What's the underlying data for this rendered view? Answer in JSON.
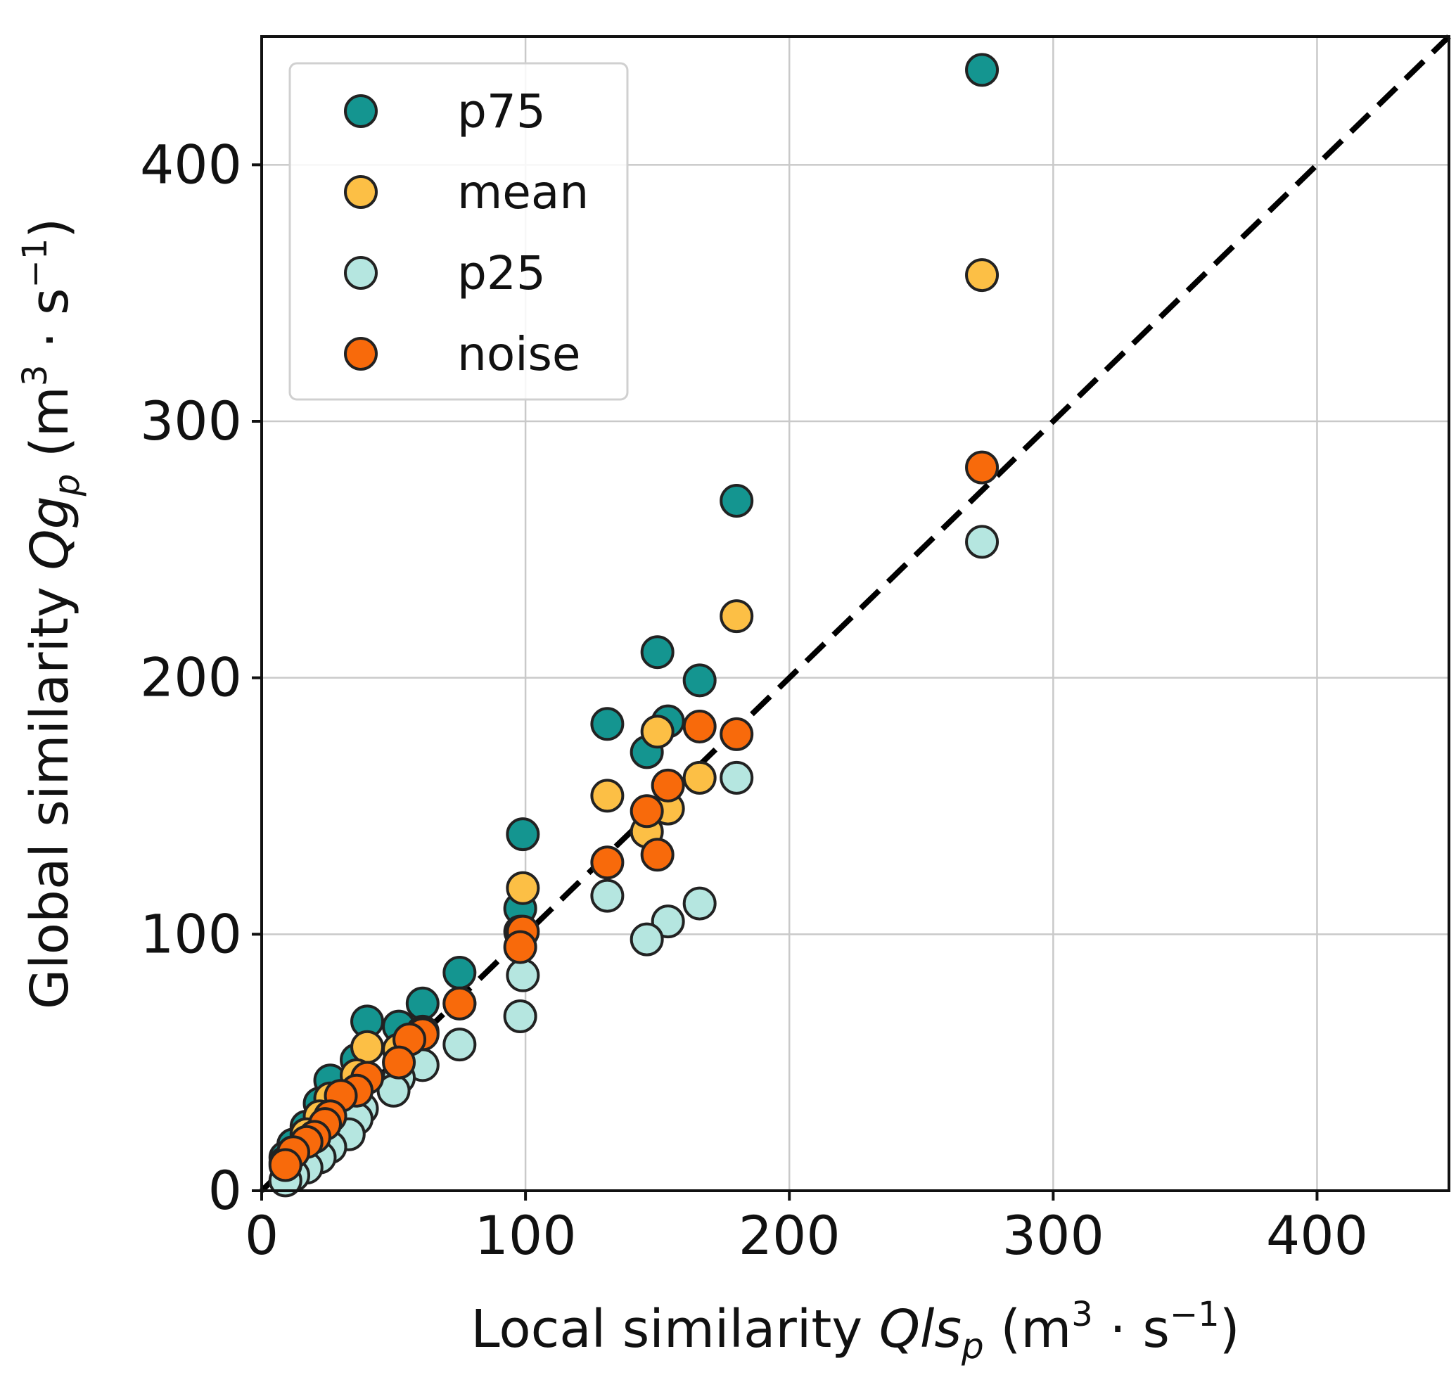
{
  "chart_data": {
    "type": "scatter",
    "title": "",
    "xlabel": {
      "text": "Local similarity ",
      "var": "Qls",
      "sub": "p",
      "unit_open": " (m",
      "unit_sup": "3",
      "unit_mid": " · s",
      "unit_sup2": "−1",
      "unit_close": ")"
    },
    "ylabel": {
      "text": "Global similarity ",
      "var": "Qg",
      "sub": "p",
      "unit_open": " (m",
      "unit_sup": "3",
      "unit_mid": " · s",
      "unit_sup2": "−1",
      "unit_close": ")"
    },
    "xlim": [
      0,
      450
    ],
    "ylim": [
      0,
      450
    ],
    "x_ticks": [
      0,
      100,
      200,
      300,
      400
    ],
    "y_ticks": [
      0,
      100,
      200,
      300,
      400
    ],
    "x_tick_labels": [
      "0",
      "100",
      "200",
      "300",
      "400"
    ],
    "y_tick_labels": [
      "0",
      "100",
      "200",
      "300",
      "400"
    ],
    "grid": true,
    "legend_position": "top-left",
    "reference_line": {
      "style": "dashed",
      "color": "#000000",
      "from": [
        0,
        0
      ],
      "to": [
        450,
        450
      ]
    },
    "series": [
      {
        "name": "p75",
        "color": "#149590",
        "points": [
          [
            273,
            437
          ],
          [
            180,
            269
          ],
          [
            150,
            210
          ],
          [
            166,
            199
          ],
          [
            154,
            183
          ],
          [
            131,
            182
          ],
          [
            146,
            171
          ],
          [
            99,
            139
          ],
          [
            98,
            110
          ],
          [
            75,
            85
          ],
          [
            40,
            66
          ],
          [
            61,
            73
          ],
          [
            52,
            64
          ],
          [
            36,
            51
          ],
          [
            26,
            43
          ],
          [
            22,
            34
          ],
          [
            17,
            25
          ],
          [
            12,
            18
          ],
          [
            9,
            13
          ]
        ]
      },
      {
        "name": "mean",
        "color": "#fcbf45",
        "points": [
          [
            273,
            357
          ],
          [
            180,
            224
          ],
          [
            150,
            179
          ],
          [
            131,
            154
          ],
          [
            166,
            161
          ],
          [
            154,
            149
          ],
          [
            146,
            140
          ],
          [
            99,
            118
          ],
          [
            98,
            101
          ],
          [
            75,
            73
          ],
          [
            40,
            56
          ],
          [
            61,
            62
          ],
          [
            52,
            55
          ],
          [
            36,
            45
          ],
          [
            26,
            36
          ],
          [
            22,
            29
          ],
          [
            17,
            22
          ],
          [
            12,
            15
          ],
          [
            9,
            11
          ]
        ]
      },
      {
        "name": "p25",
        "color": "#b5e6e0",
        "points": [
          [
            273,
            253
          ],
          [
            180,
            161
          ],
          [
            166,
            112
          ],
          [
            154,
            105
          ],
          [
            146,
            98
          ],
          [
            131,
            115
          ],
          [
            99,
            84
          ],
          [
            98,
            68
          ],
          [
            75,
            57
          ],
          [
            61,
            49
          ],
          [
            52,
            44
          ],
          [
            50,
            39
          ],
          [
            38,
            32
          ],
          [
            36,
            28
          ],
          [
            33,
            22
          ],
          [
            26,
            17
          ],
          [
            22,
            13
          ],
          [
            17,
            9
          ],
          [
            12,
            6
          ],
          [
            9,
            4
          ]
        ]
      },
      {
        "name": "noise",
        "color": "#f86a0b",
        "points": [
          [
            273,
            282
          ],
          [
            180,
            178
          ],
          [
            166,
            181
          ],
          [
            154,
            158
          ],
          [
            146,
            148
          ],
          [
            150,
            131
          ],
          [
            131,
            128
          ],
          [
            99,
            101
          ],
          [
            98,
            95
          ],
          [
            75,
            73
          ],
          [
            61,
            61
          ],
          [
            56,
            59
          ],
          [
            52,
            50
          ],
          [
            40,
            44
          ],
          [
            36,
            39
          ],
          [
            30,
            37
          ],
          [
            26,
            29
          ],
          [
            24,
            26
          ],
          [
            20,
            21
          ],
          [
            17,
            19
          ],
          [
            12,
            15
          ],
          [
            9,
            10
          ]
        ]
      }
    ]
  }
}
